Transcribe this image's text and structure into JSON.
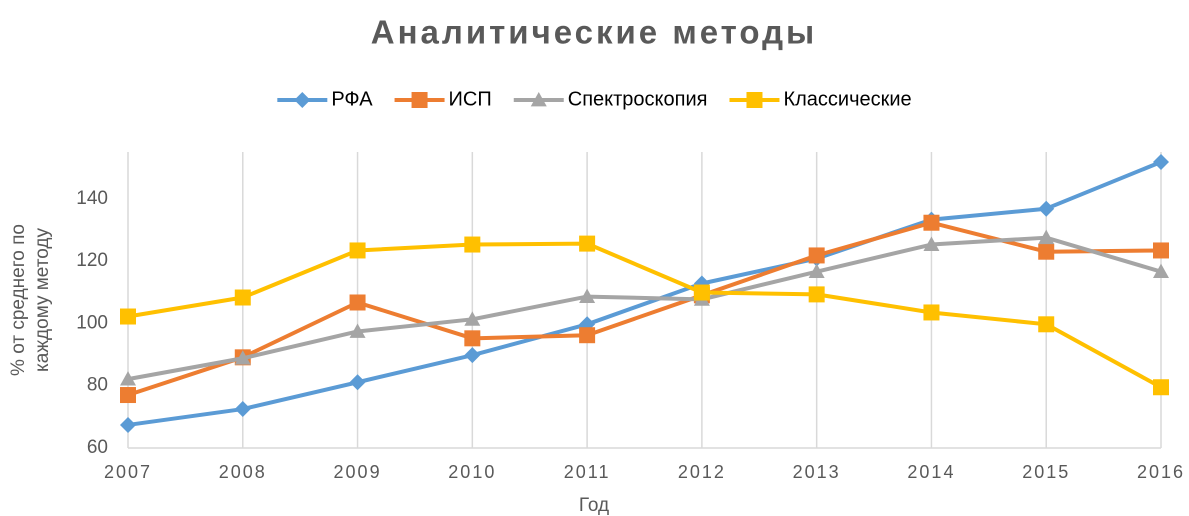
{
  "chart_data": {
    "type": "line",
    "title": "Аналитические методы",
    "x_label": "Год",
    "y_label": [
      "% от среднего по",
      "каждому методу"
    ],
    "x": [
      2007,
      2008,
      2009,
      2010,
      2011,
      2012,
      2013,
      2014,
      2015,
      2016
    ],
    "xlim": [
      2007,
      2016
    ],
    "xticks": [
      2007,
      2008,
      2009,
      2010,
      2011,
      2012,
      2013,
      2014,
      2015,
      2016
    ],
    "ylim": [
      60,
      155
    ],
    "yticks": [
      60,
      80,
      100,
      120,
      140
    ],
    "grid": "x",
    "legend": "top",
    "series": [
      {
        "name": "РФА",
        "color": "#5b9bd5",
        "marker": "diamond",
        "values": [
          67.4,
          72.5,
          81.1,
          89.8,
          99.7,
          112.8,
          120.8,
          133.3,
          136.8,
          151.8
        ]
      },
      {
        "name": "ИСП",
        "color": "#ed7d31",
        "marker": "square",
        "values": [
          77,
          89.1,
          106.7,
          95.2,
          96.2,
          109,
          121.8,
          132.3,
          123,
          123.4
        ]
      },
      {
        "name": "Спектроскопия",
        "color": "#a5a5a5",
        "marker": "triangle",
        "values": [
          82.1,
          88.8,
          97.4,
          101.3,
          108.6,
          107.7,
          116.6,
          125.3,
          127.5,
          116.6
        ]
      },
      {
        "name": "Классические",
        "color": "#ffc000",
        "marker": "square",
        "values": [
          102.2,
          108.3,
          123.4,
          125.3,
          125.6,
          109.9,
          109.3,
          103.5,
          99.7,
          79.5
        ]
      }
    ]
  }
}
